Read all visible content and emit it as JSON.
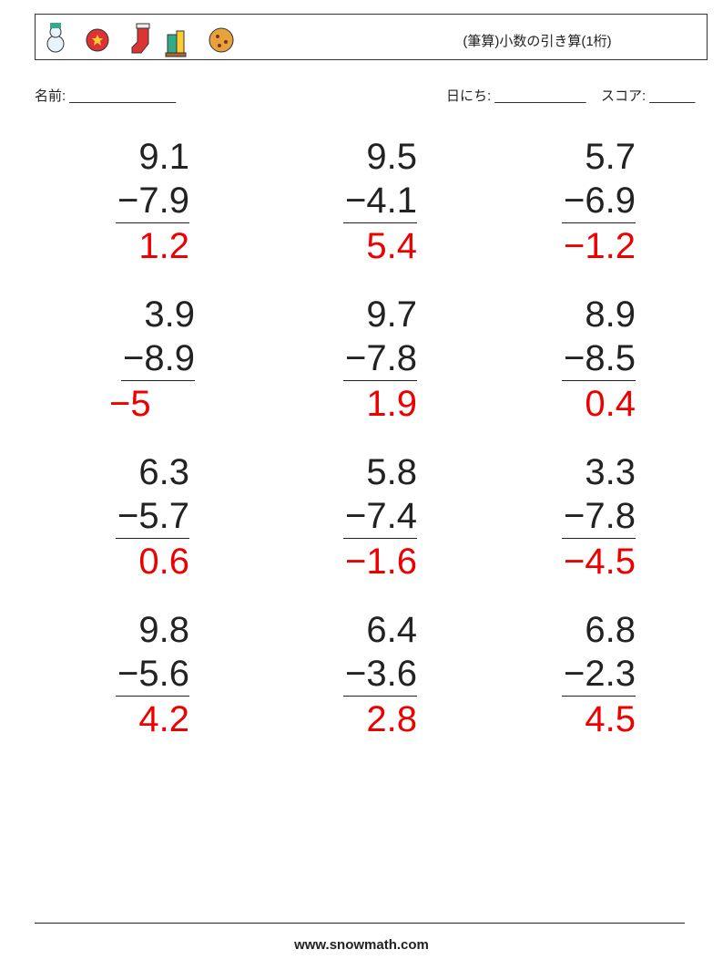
{
  "header": {
    "title": "(筆算)小数の引き算(1桁)"
  },
  "fields": {
    "name": "名前: ______________",
    "date": "日にち: ____________",
    "score": "スコア: ______"
  },
  "problems": [
    {
      "top": "9.1",
      "bottom": "−7.9",
      "answer": "1.2"
    },
    {
      "top": "9.5",
      "bottom": "−4.1",
      "answer": "5.4"
    },
    {
      "top": "5.7",
      "bottom": "−6.9",
      "answer": "−1.2"
    },
    {
      "top": "3.9",
      "bottom": "−8.9",
      "answer": "−5"
    },
    {
      "top": "9.7",
      "bottom": "−7.8",
      "answer": "1.9"
    },
    {
      "top": "8.9",
      "bottom": "−8.5",
      "answer": "0.4"
    },
    {
      "top": "6.3",
      "bottom": "−5.7",
      "answer": "0.6"
    },
    {
      "top": "5.8",
      "bottom": "−7.4",
      "answer": "−1.6"
    },
    {
      "top": "3.3",
      "bottom": "−7.8",
      "answer": "−4.5"
    },
    {
      "top": "9.8",
      "bottom": "−5.6",
      "answer": "4.2"
    },
    {
      "top": "6.4",
      "bottom": "−3.6",
      "answer": "2.8"
    },
    {
      "top": "6.8",
      "bottom": "−2.3",
      "answer": "4.5"
    }
  ],
  "footer": {
    "url": "www.snowmath.com"
  }
}
